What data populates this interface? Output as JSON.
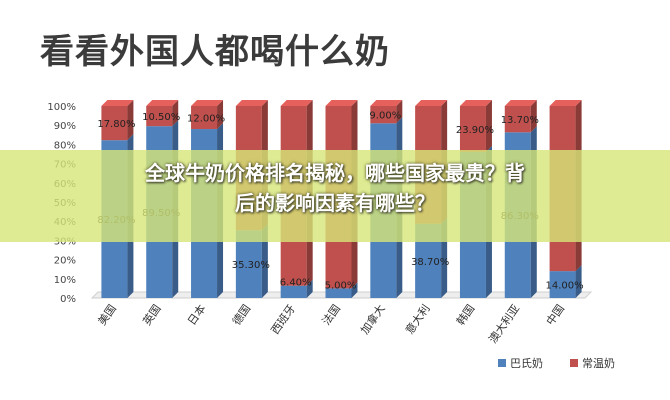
{
  "image_title": "看看外国人都喝什么奶",
  "overlay": {
    "line1": "全球牛奶价格排名揭秘，哪些国家最贵？背",
    "line2": "后的影响因素有哪些？"
  },
  "colors": {
    "series1": "#4f81bd",
    "series2": "#c0504d",
    "background": "#ffffff"
  },
  "chart_data": {
    "type": "bar",
    "stacked": true,
    "percent": true,
    "categories": [
      "美国",
      "英国",
      "日本",
      "德国",
      "西班牙",
      "法国",
      "加拿大",
      "意大利",
      "韩国",
      "澳大利亚",
      "中国"
    ],
    "series": [
      {
        "name": "巴氏奶",
        "values": [
          82.2,
          89.5,
          88.0,
          35.3,
          6.4,
          5.0,
          91.0,
          38.7,
          76.1,
          86.3,
          14.0
        ]
      },
      {
        "name": "常温奶",
        "values": [
          17.8,
          10.5,
          12.0,
          64.7,
          93.6,
          95.0,
          9.0,
          61.3,
          23.9,
          13.7,
          86.0
        ]
      }
    ],
    "data_labels": [
      {
        "series": 0,
        "index": 0,
        "text": "82.20%"
      },
      {
        "series": 0,
        "index": 1,
        "text": "89.50%"
      },
      {
        "series": 0,
        "index": 3,
        "text": "35.30%"
      },
      {
        "series": 0,
        "index": 4,
        "text": "6.40%"
      },
      {
        "series": 0,
        "index": 5,
        "text": "5.00%"
      },
      {
        "series": 0,
        "index": 7,
        "text": "38.70%"
      },
      {
        "series": 0,
        "index": 9,
        "text": "86.30%"
      },
      {
        "series": 0,
        "index": 10,
        "text": "14.00%"
      },
      {
        "series": 1,
        "index": 0,
        "text": "17.80%"
      },
      {
        "series": 1,
        "index": 1,
        "text": "10.50%"
      },
      {
        "series": 1,
        "index": 2,
        "text": "12.00%"
      },
      {
        "series": 1,
        "index": 6,
        "text": "9.00%"
      },
      {
        "series": 1,
        "index": 8,
        "text": "23.90%"
      },
      {
        "series": 1,
        "index": 9,
        "text": "13.70%"
      }
    ],
    "yticks": [
      "0%",
      "10%",
      "20%",
      "30%",
      "40%",
      "50%",
      "60%",
      "70%",
      "80%",
      "90%",
      "100%"
    ],
    "ylim": [
      0,
      100
    ],
    "legend_position": "bottom-right",
    "grid": false
  }
}
